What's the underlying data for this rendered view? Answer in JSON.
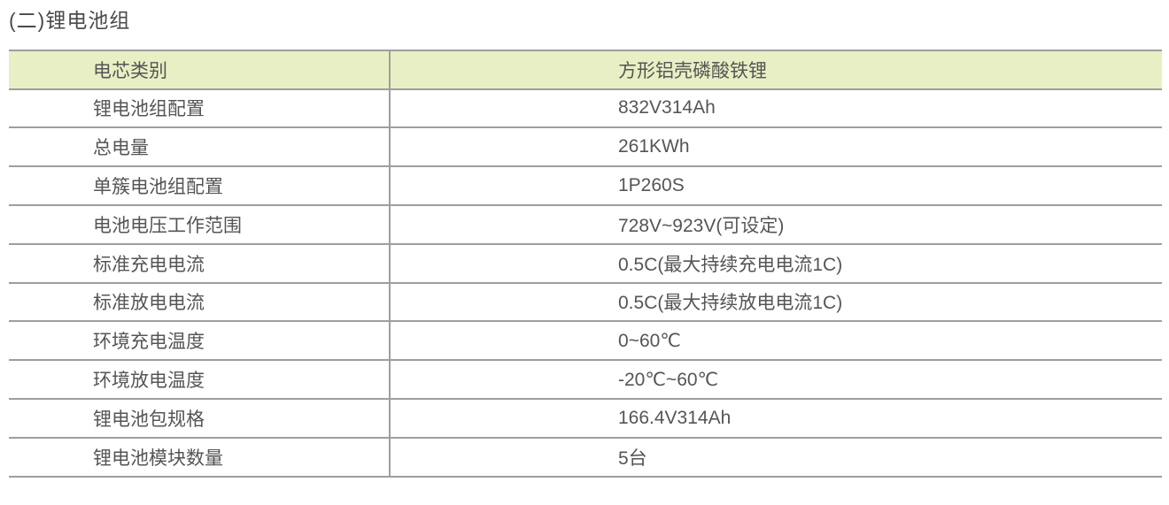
{
  "page": {
    "title": "(二)锂电池组"
  },
  "table": {
    "header": {
      "label": "电芯类别",
      "value": "方形铝壳磷酸铁锂"
    },
    "rows": [
      {
        "label": "锂电池组配置",
        "value": "832V314Ah"
      },
      {
        "label": "总电量",
        "value": "261KWh"
      },
      {
        "label": "单簇电池组配置",
        "value": "1P260S"
      },
      {
        "label": "电池电压工作范围",
        "value": "728V~923V(可设定)"
      },
      {
        "label": "标准充电电流",
        "value": "0.5C(最大持续充电电流1C)"
      },
      {
        "label": "标准放电电流",
        "value": "0.5C(最大持续放电电流1C)"
      },
      {
        "label": "环境充电温度",
        "value": "0~60℃"
      },
      {
        "label": "环境放电温度",
        "value": "-20℃~60℃"
      },
      {
        "label": "锂电池包规格",
        "value": "166.4V314Ah"
      },
      {
        "label": "锂电池模块数量",
        "value": "5台"
      }
    ],
    "colors": {
      "header_bg": "#e8efc4",
      "border": "#9e9e9e",
      "text": "#555555",
      "title_text": "#4a4a4a"
    }
  }
}
